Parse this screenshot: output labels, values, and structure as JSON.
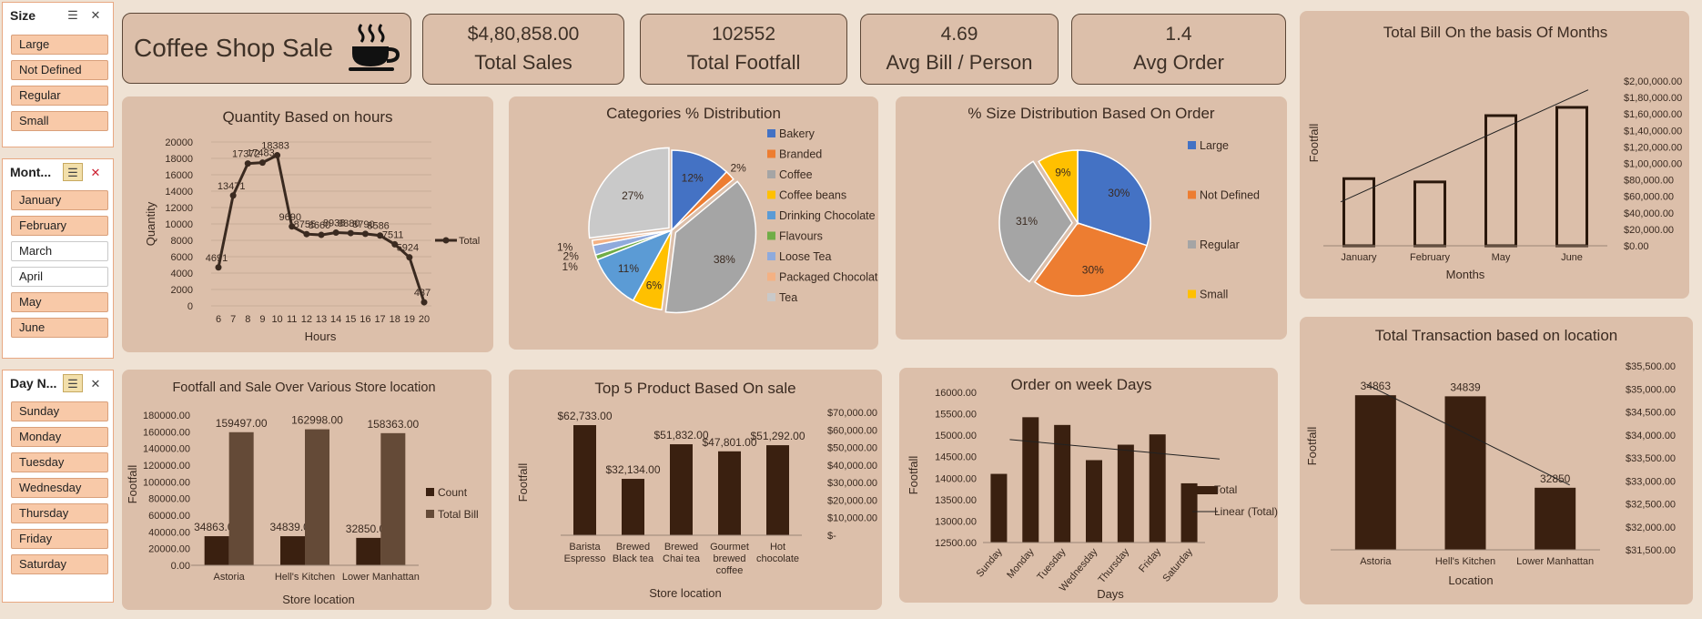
{
  "slicers": [
    {
      "title": "Size",
      "items": [
        {
          "label": "Large",
          "selected": true
        },
        {
          "label": "Not Defined",
          "selected": true
        },
        {
          "label": "Regular",
          "selected": true
        },
        {
          "label": "Small",
          "selected": true
        }
      ]
    },
    {
      "title": "Mont...",
      "items": [
        {
          "label": "January",
          "selected": true
        },
        {
          "label": "February",
          "selected": true
        },
        {
          "label": "March",
          "selected": false
        },
        {
          "label": "April",
          "selected": false
        },
        {
          "label": "May",
          "selected": true
        },
        {
          "label": "June",
          "selected": true
        }
      ]
    },
    {
      "title": "Day N...",
      "items": [
        {
          "label": "Sunday",
          "selected": true
        },
        {
          "label": "Monday",
          "selected": true
        },
        {
          "label": "Tuesday",
          "selected": true
        },
        {
          "label": "Wednesday",
          "selected": true
        },
        {
          "label": "Thursday",
          "selected": true
        },
        {
          "label": "Friday",
          "selected": true
        },
        {
          "label": "Saturday",
          "selected": true
        }
      ]
    }
  ],
  "header": {
    "title": "Coffee Shop Sale",
    "icon": "coffee-cup-icon"
  },
  "kpis": [
    {
      "value": "$4,80,858.00",
      "label": "Total Sales"
    },
    {
      "value": "102552",
      "label": "Total Footfall"
    },
    {
      "value": "4.69",
      "label": "Avg Bill / Person"
    },
    {
      "value": "1.4",
      "label": "Avg Order"
    }
  ],
  "colors": {
    "bar": "#3a2010",
    "bar2": "#644a37",
    "panel": "#dcbfaa",
    "bg": "#efe2d4",
    "line": "#3a2a20"
  },
  "chart_data": [
    {
      "id": "hours",
      "type": "line",
      "title": "Quantity Based on hours",
      "xlabel": "Hours",
      "ylabel": "Quantity",
      "x": [
        6,
        7,
        8,
        9,
        10,
        11,
        12,
        13,
        14,
        15,
        16,
        17,
        18,
        19,
        20
      ],
      "series": [
        {
          "name": "Total",
          "values": [
            4691,
            13471,
            17372,
            17483,
            18383,
            9690,
            8755,
            8660,
            8938,
            8880,
            8790,
            8586,
            7511,
            5924,
            437
          ]
        }
      ],
      "labels": [
        "4691",
        "13471",
        "17372",
        "17483",
        "18383",
        "9690",
        "8755",
        "8660",
        "8938",
        "8880",
        "8790",
        "8586",
        "7511",
        "5924",
        "437"
      ],
      "ylim": [
        0,
        20000
      ],
      "yticks": [
        "0",
        "2000",
        "4000",
        "6000",
        "8000",
        "10000",
        "12000",
        "14000",
        "16000",
        "18000",
        "20000"
      ],
      "grid": true,
      "legend": "right"
    },
    {
      "id": "categories",
      "type": "pie",
      "title": "Categories % Distribution",
      "slices": [
        {
          "name": "Bakery",
          "value": 12,
          "label": "12%",
          "color": "#4472c4"
        },
        {
          "name": "Branded",
          "value": 2,
          "label": "2%",
          "color": "#ed7d31"
        },
        {
          "name": "Coffee",
          "value": 38,
          "label": "38%",
          "color": "#a5a5a5"
        },
        {
          "name": "Coffee beans",
          "value": 6,
          "label": "6%",
          "color": "#ffc000"
        },
        {
          "name": "Drinking Chocolate",
          "value": 11,
          "label": "11%",
          "color": "#5b9bd5"
        },
        {
          "name": "Flavours",
          "value": 1,
          "label": "1%",
          "color": "#70ad47"
        },
        {
          "name": "Loose Tea",
          "value": 2,
          "label": "2%",
          "color": "#8faadc"
        },
        {
          "name": "Packaged Chocolate",
          "value": 1,
          "label": "1%",
          "color": "#f4b183"
        },
        {
          "name": "Tea",
          "value": 27,
          "label": "27%",
          "color": "#c9c9c9"
        }
      ],
      "legend": "right"
    },
    {
      "id": "sizes",
      "type": "pie",
      "title": "% Size Distribution Based On Order",
      "slices": [
        {
          "name": "Large",
          "value": 30,
          "label": "30%",
          "color": "#4472c4"
        },
        {
          "name": "Not Defined",
          "value": 30,
          "label": "30%",
          "color": "#ed7d31"
        },
        {
          "name": "Regular",
          "value": 31,
          "label": "31%",
          "color": "#a5a5a5"
        },
        {
          "name": "Small",
          "value": 9,
          "label": "9%",
          "color": "#ffc000"
        }
      ],
      "legend": "right"
    },
    {
      "id": "months",
      "type": "bar",
      "title": "Total Bill On the basis Of Months",
      "xlabel": "Months",
      "ylabel": "Footfall",
      "categories": [
        "January",
        "February",
        "May",
        "June"
      ],
      "values": [
        81500,
        77500,
        158000,
        168000
      ],
      "ylim": [
        0,
        200000
      ],
      "yticks": [
        "$0.00",
        "$20,000.00",
        "$40,000.00",
        "$60,000.00",
        "$80,000.00",
        "$1,00,000.00",
        "$1,20,000.00",
        "$1,40,000.00",
        "$1,60,000.00",
        "$1,80,000.00",
        "$2,00,000.00"
      ],
      "trendline": true,
      "legend": "none"
    },
    {
      "id": "store",
      "type": "bar",
      "title": "Footfall and Sale Over Various Store location",
      "xlabel": "Store location",
      "ylabel": "Footfall",
      "categories": [
        "Astoria",
        "Hell's Kitchen",
        "Lower Manhattan"
      ],
      "series": [
        {
          "name": "Count",
          "values": [
            34863,
            34839,
            32850
          ],
          "labels": [
            "34863.00",
            "34839.00",
            "32850.00"
          ]
        },
        {
          "name": "Total Bill",
          "values": [
            159497,
            162998,
            158363
          ],
          "labels": [
            "159497.00",
            "162998.00",
            "158363.00"
          ]
        }
      ],
      "ylim": [
        0,
        180000
      ],
      "yticks": [
        "0.00",
        "20000.00",
        "40000.00",
        "60000.00",
        "80000.00",
        "100000.00",
        "120000.00",
        "140000.00",
        "160000.00",
        "180000.00"
      ],
      "legend": "right"
    },
    {
      "id": "products",
      "type": "bar",
      "title": "Top 5 Product Based On sale",
      "xlabel": "Store location",
      "ylabel": "Footfall",
      "categories": [
        [
          "Barista",
          "Espresso"
        ],
        [
          "Brewed",
          "Black tea"
        ],
        [
          "Brewed",
          "Chai tea"
        ],
        [
          "Gourmet",
          "brewed",
          "coffee"
        ],
        [
          "Hot",
          "chocolate"
        ]
      ],
      "values": [
        62733,
        32134,
        51832,
        47801,
        51292
      ],
      "labels": [
        "$62,733.00",
        "$32,134.00",
        "$51,832.00",
        "$47,801.00",
        "$51,292.00"
      ],
      "ylim": [
        0,
        70000
      ],
      "yticks": [
        "$-",
        "$10,000.00",
        "$20,000.00",
        "$30,000.00",
        "$40,000.00",
        "$50,000.00",
        "$60,000.00",
        "$70,000.00"
      ],
      "legend": "none"
    },
    {
      "id": "weekdays",
      "type": "bar",
      "title": "Order on week Days",
      "xlabel": "Days",
      "ylabel": "Footfall",
      "categories": [
        "Sunday",
        "Monday",
        "Tuesday",
        "Wednesday",
        "Thursday",
        "Friday",
        "Saturday"
      ],
      "values": [
        14100,
        15420,
        15240,
        14420,
        14780,
        15020,
        13880
      ],
      "ylim": [
        12500,
        16000
      ],
      "yticks": [
        "12500.00",
        "13000.00",
        "13500.00",
        "14000.00",
        "14500.00",
        "15000.00",
        "15500.00",
        "16000.00"
      ],
      "trendline": true,
      "legend": "right",
      "legend_entries": [
        "Total",
        "Linear (Total)"
      ]
    },
    {
      "id": "location",
      "type": "bar",
      "title": "Total Transaction based on location",
      "xlabel": "Location",
      "ylabel": "Footfall",
      "categories": [
        "Astoria",
        "Hell's Kitchen",
        "Lower Manhattan"
      ],
      "values": [
        34863,
        34839,
        32850
      ],
      "labels": [
        "34863",
        "34839",
        "32850"
      ],
      "ylim": [
        31500,
        35500
      ],
      "yticks": [
        "$31,500.00",
        "$32,000.00",
        "$32,500.00",
        "$33,000.00",
        "$33,500.00",
        "$34,000.00",
        "$34,500.00",
        "$35,000.00",
        "$35,500.00"
      ],
      "trendline": true,
      "legend": "none"
    }
  ]
}
